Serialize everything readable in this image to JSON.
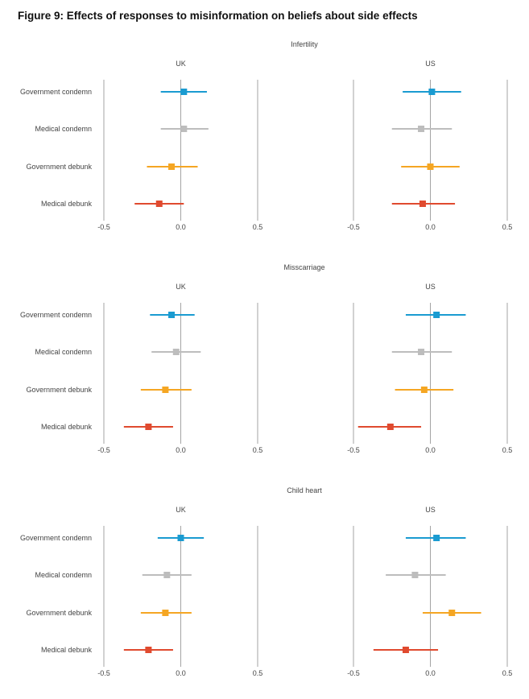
{
  "figure_title": "Figure 9: Effects of responses to misinformation on beliefs about side effects",
  "colors": {
    "Government condemn": "#1a9bd1",
    "Medical condemn": "#bdbdbd",
    "Government debunk": "#f5a623",
    "Medical debunk": "#e04a2f",
    "gridline": "#9a9a9a"
  },
  "chart_data": [
    {
      "type": "forest",
      "title": "Infertility",
      "row_labels": [
        "Government condemn",
        "Medical condemn",
        "Government debunk",
        "Medical debunk"
      ],
      "xticks": [
        -0.5,
        0.0,
        0.5
      ],
      "xtick_labels": [
        "-0.5",
        "0.0",
        "0.5"
      ],
      "xlim": [
        -0.5,
        0.5
      ],
      "panels": [
        {
          "name": "UK",
          "points": [
            {
              "label": "Government condemn",
              "est": 0.02,
              "lo": -0.13,
              "hi": 0.17
            },
            {
              "label": "Medical condemn",
              "est": 0.02,
              "lo": -0.13,
              "hi": 0.18
            },
            {
              "label": "Government debunk",
              "est": -0.06,
              "lo": -0.22,
              "hi": 0.11
            },
            {
              "label": "Medical debunk",
              "est": -0.14,
              "lo": -0.3,
              "hi": 0.02
            }
          ]
        },
        {
          "name": "US",
          "points": [
            {
              "label": "Government condemn",
              "est": 0.01,
              "lo": -0.18,
              "hi": 0.2
            },
            {
              "label": "Medical condemn",
              "est": -0.06,
              "lo": -0.25,
              "hi": 0.14
            },
            {
              "label": "Government debunk",
              "est": 0.0,
              "lo": -0.19,
              "hi": 0.19
            },
            {
              "label": "Medical debunk",
              "est": -0.05,
              "lo": -0.25,
              "hi": 0.16
            }
          ]
        }
      ]
    },
    {
      "type": "forest",
      "title": "Misscarriage",
      "row_labels": [
        "Government condemn",
        "Medical condemn",
        "Government debunk",
        "Medical debunk"
      ],
      "xticks": [
        -0.5,
        0.0,
        0.5
      ],
      "xtick_labels": [
        "-0.5",
        "0.0",
        "0.5"
      ],
      "xlim": [
        -0.5,
        0.5
      ],
      "panels": [
        {
          "name": "UK",
          "points": [
            {
              "label": "Government condemn",
              "est": -0.06,
              "lo": -0.2,
              "hi": 0.09
            },
            {
              "label": "Medical condemn",
              "est": -0.03,
              "lo": -0.19,
              "hi": 0.13
            },
            {
              "label": "Government debunk",
              "est": -0.1,
              "lo": -0.26,
              "hi": 0.07
            },
            {
              "label": "Medical debunk",
              "est": -0.21,
              "lo": -0.37,
              "hi": -0.05
            }
          ]
        },
        {
          "name": "US",
          "points": [
            {
              "label": "Government condemn",
              "est": 0.04,
              "lo": -0.16,
              "hi": 0.23
            },
            {
              "label": "Medical condemn",
              "est": -0.06,
              "lo": -0.25,
              "hi": 0.14
            },
            {
              "label": "Government debunk",
              "est": -0.04,
              "lo": -0.23,
              "hi": 0.15
            },
            {
              "label": "Medical debunk",
              "est": -0.26,
              "lo": -0.47,
              "hi": -0.06
            }
          ]
        }
      ]
    },
    {
      "type": "forest",
      "title": "Child heart",
      "row_labels": [
        "Government condemn",
        "Medical condemn",
        "Government debunk",
        "Medical debunk"
      ],
      "xticks": [
        -0.5,
        0.0,
        0.5
      ],
      "xtick_labels": [
        "-0.5",
        "0.0",
        "0.5"
      ],
      "xlim": [
        -0.5,
        0.5
      ],
      "panels": [
        {
          "name": "UK",
          "points": [
            {
              "label": "Government condemn",
              "est": 0.0,
              "lo": -0.15,
              "hi": 0.15
            },
            {
              "label": "Medical condemn",
              "est": -0.09,
              "lo": -0.25,
              "hi": 0.07
            },
            {
              "label": "Government debunk",
              "est": -0.1,
              "lo": -0.26,
              "hi": 0.07
            },
            {
              "label": "Medical debunk",
              "est": -0.21,
              "lo": -0.37,
              "hi": -0.05
            }
          ]
        },
        {
          "name": "US",
          "points": [
            {
              "label": "Government condemn",
              "est": 0.04,
              "lo": -0.16,
              "hi": 0.23
            },
            {
              "label": "Medical condemn",
              "est": -0.1,
              "lo": -0.29,
              "hi": 0.1
            },
            {
              "label": "Government debunk",
              "est": 0.14,
              "lo": -0.05,
              "hi": 0.33
            },
            {
              "label": "Medical debunk",
              "est": -0.16,
              "lo": -0.37,
              "hi": 0.05
            }
          ]
        }
      ]
    }
  ]
}
